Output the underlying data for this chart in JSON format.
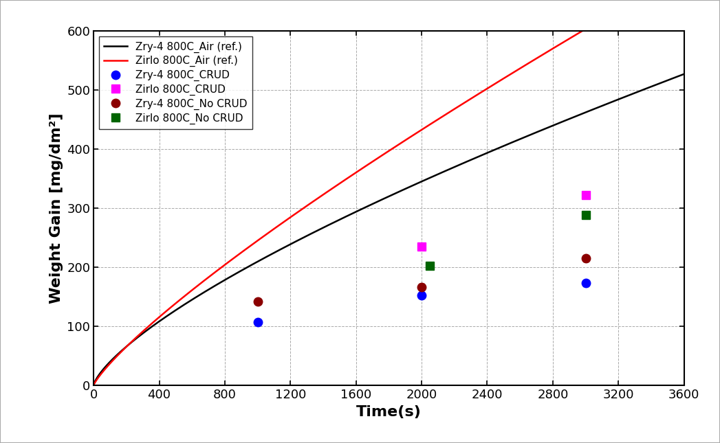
{
  "title": "",
  "xlabel": "Time(s)",
  "ylabel": "Weight Gain [mg/dm²]",
  "xlim": [
    0,
    3600
  ],
  "ylim": [
    0,
    600
  ],
  "xticks": [
    0,
    400,
    800,
    1200,
    1600,
    2000,
    2400,
    2800,
    3200,
    3600
  ],
  "yticks": [
    0,
    100,
    200,
    300,
    400,
    500,
    600
  ],
  "ref_curves": [
    {
      "label": "Zry-4 800C_Air (ref.)",
      "color": "#000000",
      "coef": 1.45,
      "exp": 0.72
    },
    {
      "label": "Zirlo 800C_Air (ref.)",
      "color": "#FF0000",
      "coef": 0.85,
      "exp": 0.82
    }
  ],
  "scatter_series": [
    {
      "label": "Zry-4 800C_CRUD",
      "color": "#0000FF",
      "marker": "o",
      "x": [
        1000,
        2000,
        3000
      ],
      "y": [
        107,
        153,
        173
      ],
      "yerr": [
        5,
        5,
        5
      ]
    },
    {
      "label": "Zirlo 800C_CRUD",
      "color": "#FF00FF",
      "marker": "s",
      "x": [
        2000,
        3000
      ],
      "y": [
        235,
        322
      ],
      "yerr": [
        5,
        5
      ]
    },
    {
      "label": "Zry-4 800C_No CRUD",
      "color": "#8B0000",
      "marker": "o",
      "x": [
        1000,
        2000,
        3000
      ],
      "y": [
        142,
        167,
        215
      ],
      "yerr": [
        5,
        5,
        5
      ]
    },
    {
      "label": "Zirlo 800C_No CRUD",
      "color": "#006400",
      "marker": "s",
      "x": [
        2050,
        3000
      ],
      "y": [
        202,
        288
      ],
      "yerr": [
        5,
        5
      ]
    }
  ],
  "background_color": "#FFFFFF",
  "grid_color": "#AAAAAA",
  "legend_loc": "upper left",
  "font_size": 13,
  "axis_label_fontsize": 16,
  "outer_border_color": "#AAAAAA"
}
